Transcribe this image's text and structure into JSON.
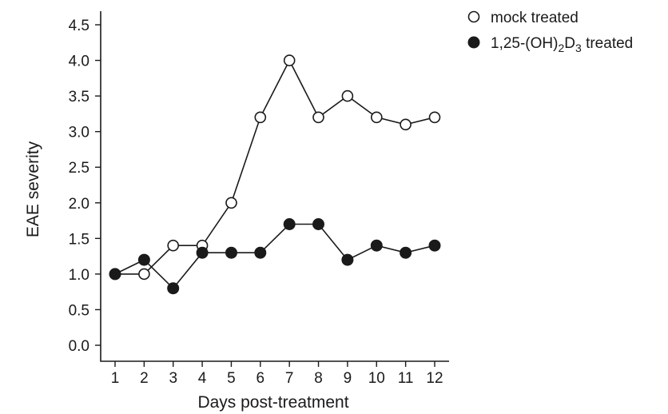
{
  "chart_data": {
    "type": "line",
    "xlabel": "Days post-treatment",
    "ylabel": "EAE severity",
    "x": [
      1,
      2,
      3,
      4,
      5,
      6,
      7,
      8,
      9,
      10,
      11,
      12
    ],
    "xlim": [
      0.5,
      12.5
    ],
    "ylim": [
      0.0,
      4.5
    ],
    "yticks": [
      "0.0",
      "0.5",
      "1.0",
      "1.5",
      "2.0",
      "2.5",
      "3.0",
      "3.5",
      "4.0",
      "4.5"
    ],
    "xticks": [
      "1",
      "2",
      "3",
      "4",
      "5",
      "6",
      "7",
      "8",
      "9",
      "10",
      "11",
      "12"
    ],
    "grid": false,
    "legend_position": "top-right",
    "series": [
      {
        "name": "mock treated",
        "marker": "open-circle",
        "values": [
          1.0,
          1.0,
          1.4,
          1.4,
          2.0,
          3.2,
          4.0,
          3.2,
          3.5,
          3.2,
          3.1,
          3.2
        ]
      },
      {
        "name": "1,25-(OH)2D3 treated",
        "name_parts": {
          "base": "1,25-(OH)",
          "sub1": "2",
          "mid": "D",
          "sub2": "3",
          "tail": " treated"
        },
        "marker": "filled-circle",
        "values": [
          1.0,
          1.2,
          0.8,
          1.3,
          1.3,
          1.3,
          1.7,
          1.7,
          1.2,
          1.4,
          1.3,
          1.4
        ]
      }
    ]
  }
}
